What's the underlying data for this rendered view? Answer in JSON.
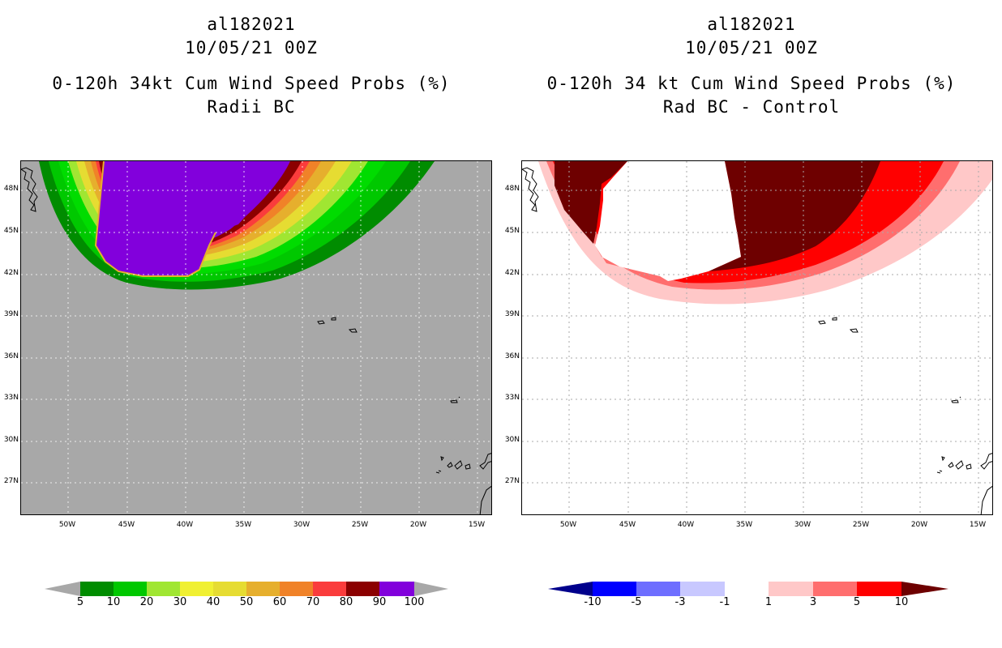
{
  "left_panel": {
    "storm_id": "al182021",
    "datetime": "10/05/21 00Z",
    "product": "0-120h 34kt Cum Wind Speed Probs (%)",
    "subtitle": "Radii BC",
    "background_color": "#a8a8a8",
    "colorbar": {
      "labels": [
        "5",
        "10",
        "20",
        "30",
        "40",
        "50",
        "60",
        "70",
        "80",
        "90",
        "100"
      ],
      "colors": [
        "#008c00",
        "#00c800",
        "#00dc00",
        "#a0e632",
        "#e6dc32",
        "#e6af2d",
        "#f08228",
        "#fa3c3c",
        "#c00000",
        "#8b0000",
        "#8200dc"
      ]
    }
  },
  "right_panel": {
    "storm_id": "al182021",
    "datetime": "10/05/21 00Z",
    "product": "0-120h 34 kt Cum Wind Speed Probs (%)",
    "subtitle": "Rad BC - Control",
    "background_color": "#ffffff",
    "colorbar": {
      "labels": [
        "-10",
        "-5",
        "-3",
        "-1",
        "1",
        "3",
        "5",
        "10"
      ],
      "colors": [
        "#00008c",
        "#0000ff",
        "#6e6eff",
        "#c8c8ff",
        "#ffffff",
        "#ffc8c8",
        "#ff6e6e",
        "#ff0000",
        "#6e0000"
      ]
    }
  },
  "lat_labels": [
    "48N",
    "45N",
    "42N",
    "39N",
    "36N",
    "33N",
    "30N",
    "27N"
  ],
  "lon_labels": [
    "50W",
    "45W",
    "40W",
    "35W",
    "30W",
    "25W",
    "20W",
    "15W"
  ]
}
